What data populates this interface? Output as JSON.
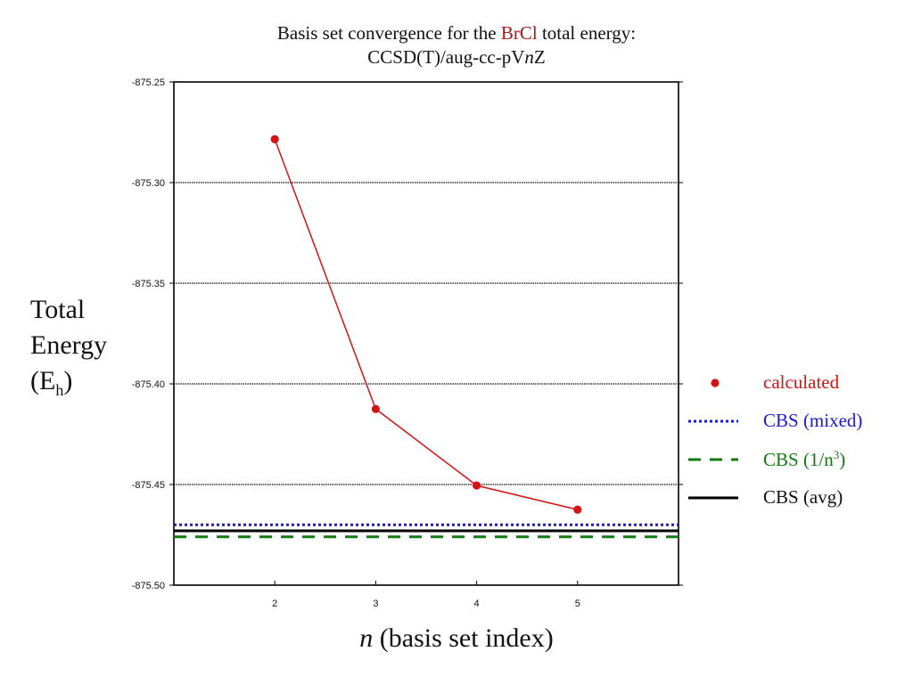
{
  "title": {
    "line1_prefix": "Basis set convergence for the ",
    "line1_accent": "BrCl",
    "line1_suffix": " total energy:",
    "line2_prefix": "CCSD(T)/aug-cc-pV",
    "line2_italic": "n",
    "line2_suffix": "Z",
    "accent_color": "#a51818"
  },
  "ylabel": {
    "line1": "Total",
    "line2": "Energy",
    "line3_prefix": "(E",
    "line3_sub": "h",
    "line3_suffix": ")"
  },
  "xlabel": {
    "italic": "n",
    "rest": " (basis set index)"
  },
  "legend": {
    "calculated": "calculated",
    "mixed": "CBS (mixed)",
    "inv_n3_prefix": "CBS (1/n",
    "inv_n3_sup": "3",
    "inv_n3_suffix": ")",
    "avg": "CBS (avg)"
  },
  "chart_data": {
    "type": "line",
    "xlim": [
      1,
      6
    ],
    "ylim": [
      -875.5,
      -875.25
    ],
    "xticks": [
      2,
      3,
      4,
      5
    ],
    "yticks": [
      -875.25,
      -875.3,
      -875.35,
      -875.4,
      -875.45,
      -875.5
    ],
    "ytick_labels": [
      "-875.25",
      "-875.30",
      "-875.35",
      "-875.40",
      "-875.45",
      "-875.50"
    ],
    "grid": "horizontal",
    "legend_position": "right",
    "series": [
      {
        "name": "calculated",
        "x": [
          2,
          3,
          4,
          5
        ],
        "y": [
          -875.2785,
          -875.4125,
          -875.4505,
          -875.4625
        ],
        "color": "#d21414",
        "style": "line-markers"
      }
    ],
    "reference_lines": [
      {
        "name": "CBS (mixed)",
        "y": -875.47,
        "color": "#1a1ad6",
        "style": "dotted"
      },
      {
        "name": "CBS (1/n3)",
        "y": -875.476,
        "color": "#137a13",
        "style": "dashed"
      },
      {
        "name": "CBS (avg)",
        "y": -875.473,
        "color": "#000000",
        "style": "solid"
      }
    ]
  }
}
